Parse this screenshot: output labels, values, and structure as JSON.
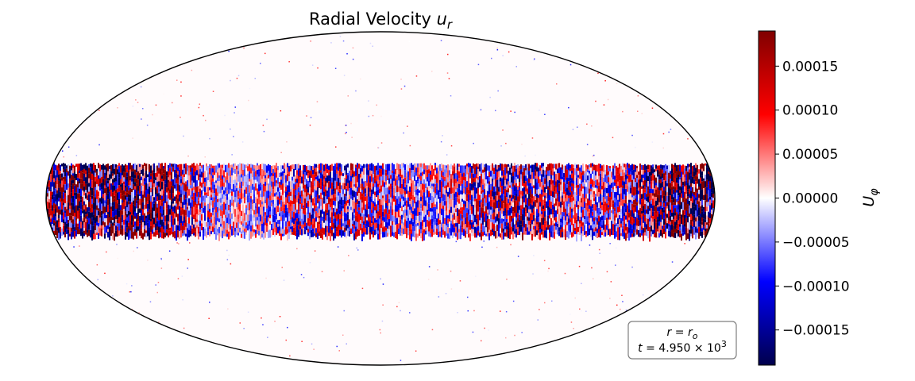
{
  "chart_data": {
    "type": "heatmap",
    "projection": "mollweide",
    "title_main": "Radial Velocity",
    "title_symbol": "u",
    "title_subscript": "r",
    "colormap": "seismic",
    "colors": {
      "min": "#00004c",
      "mid_low": "#0000ff",
      "zero": "#ffffff",
      "mid_high": "#ff0000",
      "max": "#800000",
      "outline": "#000000"
    },
    "colorbar": {
      "label_symbol": "U",
      "label_subscript": "φ",
      "range": [
        -0.00019,
        0.00019
      ],
      "ticks": [
        0.00015,
        0.0001,
        5e-05,
        0.0,
        -5e-05,
        -0.0001,
        -0.00015
      ],
      "tick_labels": [
        "0.00015",
        "0.00010",
        "0.00005",
        "0.00000",
        "−0.00005",
        "−0.00010",
        "−0.00015"
      ],
      "placement": "right"
    },
    "band": {
      "latitude_range_deg": [
        -11,
        11
      ],
      "description_values": "strong alternating red/blue equatorial band"
    },
    "annotation": {
      "line1_lhs": "r",
      "line1_eq": " = ",
      "line1_rhs": "r",
      "line1_rhs_sub": "o",
      "line2_lhs": "t",
      "line2_eq": " = 4.950 × 10",
      "line2_exp": "3",
      "placement": "bottom-right"
    }
  }
}
